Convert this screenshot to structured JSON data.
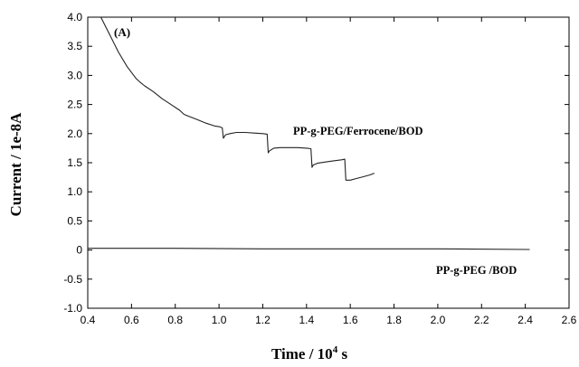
{
  "chart_data": {
    "type": "line",
    "panel_label": "(A)",
    "xlabel_main": "Time / 10",
    "xlabel_sup": "4",
    "xlabel_unit": " s",
    "ylabel": "Current / 1e-8A",
    "xlim": [
      0.4,
      2.6
    ],
    "ylim": [
      -1.0,
      4.0
    ],
    "x_ticks": [
      "0.4",
      "0.6",
      "0.8",
      "1.0",
      "1.2",
      "1.4",
      "1.6",
      "1.8",
      "2.0",
      "2.2",
      "2.4",
      "2.6"
    ],
    "y_ticks": [
      "-1.0",
      "-0.5",
      "0",
      "0.5",
      "1.0",
      "1.5",
      "2.0",
      "2.5",
      "3.0",
      "3.5",
      "4.0"
    ],
    "grid": false,
    "series": [
      {
        "name": "PP-g-PEG/Ferrocene/BOD",
        "x": [
          0.46,
          0.5,
          0.54,
          0.58,
          0.62,
          0.64,
          0.66,
          0.7,
          0.74,
          0.78,
          0.82,
          0.84,
          0.86,
          0.9,
          0.94,
          0.98,
          1.0,
          1.015,
          1.02,
          1.03,
          1.05,
          1.08,
          1.12,
          1.16,
          1.2,
          1.22,
          1.225,
          1.23,
          1.25,
          1.28,
          1.32,
          1.36,
          1.4,
          1.42,
          1.425,
          1.43,
          1.45,
          1.48,
          1.52,
          1.56,
          1.575,
          1.58,
          1.6,
          1.63,
          1.66,
          1.69,
          1.71
        ],
        "y": [
          4.0,
          3.7,
          3.4,
          3.15,
          2.95,
          2.88,
          2.82,
          2.72,
          2.6,
          2.5,
          2.4,
          2.33,
          2.3,
          2.24,
          2.18,
          2.13,
          2.12,
          2.1,
          1.92,
          1.98,
          2.0,
          2.02,
          2.02,
          2.01,
          2.0,
          1.99,
          1.67,
          1.7,
          1.75,
          1.76,
          1.76,
          1.76,
          1.75,
          1.74,
          1.42,
          1.46,
          1.49,
          1.51,
          1.53,
          1.55,
          1.56,
          1.2,
          1.2,
          1.23,
          1.26,
          1.29,
          1.32
        ]
      },
      {
        "name": "PP-g-PEG /BOD",
        "x": [
          0.4,
          0.8,
          1.2,
          1.6,
          2.0,
          2.42
        ],
        "y": [
          0.03,
          0.03,
          0.02,
          0.02,
          0.02,
          0.01
        ]
      }
    ]
  }
}
